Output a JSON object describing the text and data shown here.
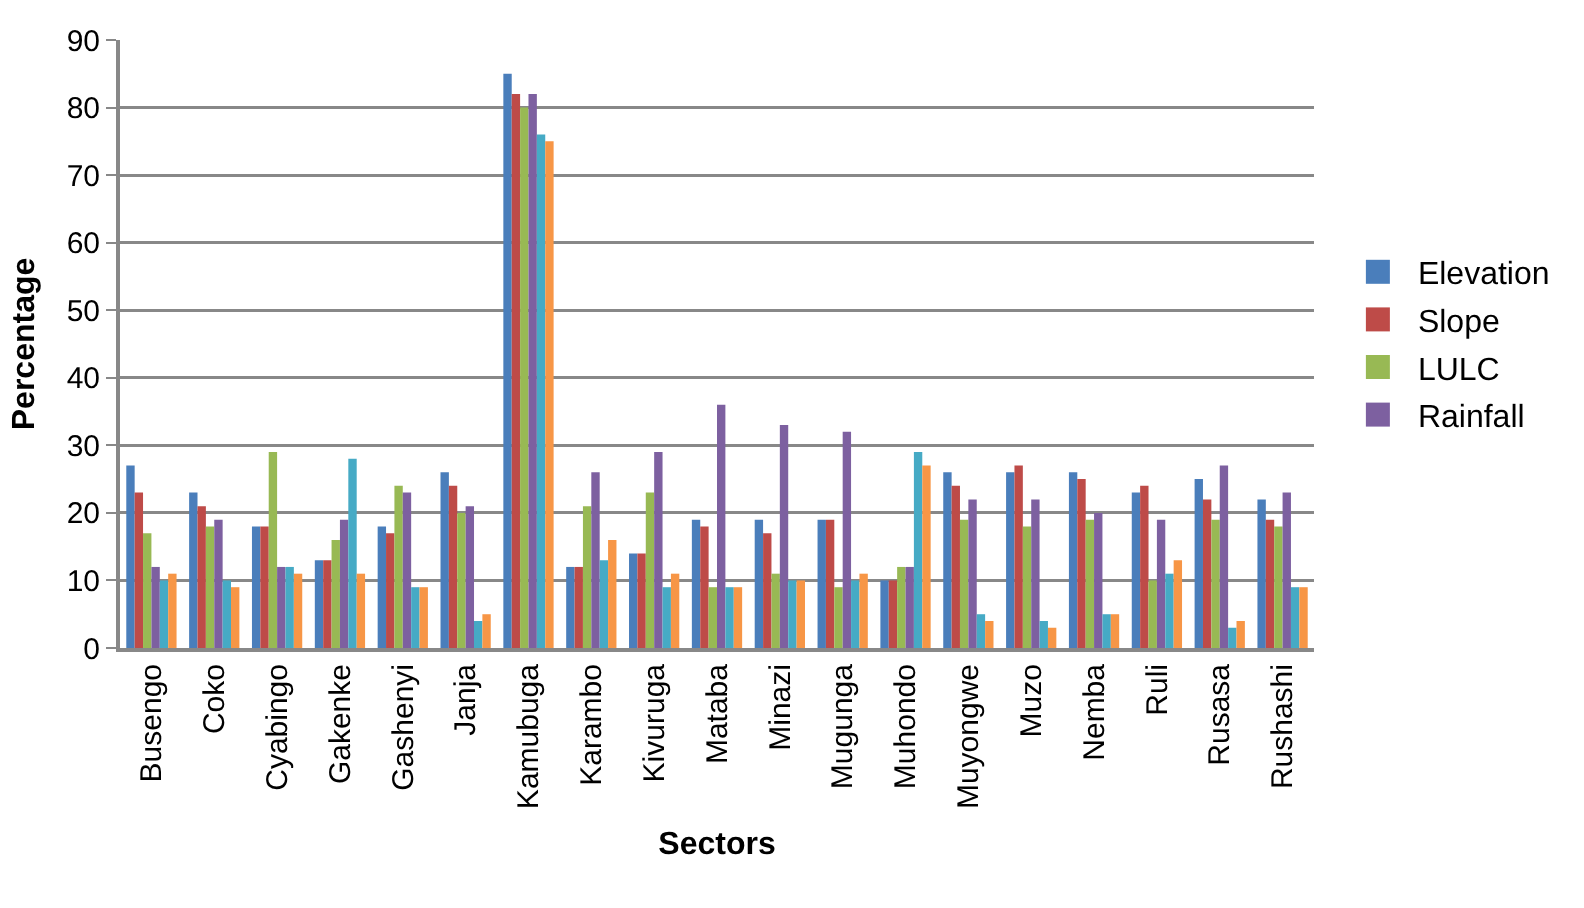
{
  "chart_data": {
    "type": "bar",
    "xlabel": "Sectors",
    "ylabel": "Percentage",
    "categories": [
      "Busengo",
      "Coko",
      "Cyabingo",
      "Gakenke",
      "Gashenyi",
      "Janja",
      "Kamubuga",
      "Karambo",
      "Kivuruga",
      "Mataba",
      "Minazi",
      "Mugunga",
      "Muhondo",
      "Muyongwe",
      "Muzo",
      "Nemba",
      "Ruli",
      "Rusasa",
      "Rushashi"
    ],
    "series": [
      {
        "name": "Elevation",
        "color": "#4a7ebb",
        "values": [
          27,
          23,
          18,
          13,
          18,
          26,
          85,
          12,
          14,
          19,
          19,
          19,
          10,
          26,
          26,
          26,
          23,
          25,
          22
        ]
      },
      {
        "name": "Slope",
        "color": "#be4b48",
        "values": [
          23,
          21,
          18,
          13,
          17,
          24,
          82,
          12,
          14,
          18,
          17,
          19,
          10,
          24,
          27,
          25,
          24,
          22,
          19
        ]
      },
      {
        "name": "LULC",
        "color": "#98b954",
        "values": [
          17,
          18,
          29,
          16,
          24,
          20,
          80,
          21,
          23,
          9,
          11,
          9,
          12,
          19,
          18,
          19,
          10,
          19,
          18
        ]
      },
      {
        "name": "Rainfall",
        "color": "#7d60a0",
        "values": [
          12,
          19,
          12,
          19,
          23,
          21,
          82,
          26,
          29,
          36,
          33,
          32,
          12,
          22,
          22,
          20,
          19,
          27,
          23
        ]
      },
      {
        "color": "#46aac5",
        "values": [
          10,
          10,
          12,
          28,
          9,
          4,
          76,
          13,
          9,
          9,
          10,
          10,
          29,
          5,
          4,
          5,
          11,
          3,
          9
        ]
      },
      {
        "color": "#f79646",
        "values": [
          11,
          9,
          11,
          11,
          9,
          5,
          75,
          16,
          11,
          9,
          10,
          11,
          27,
          4,
          3,
          5,
          13,
          4,
          9
        ]
      }
    ],
    "ylim": [
      0,
      90
    ],
    "yticks": [
      0,
      10,
      20,
      30,
      40,
      50,
      60,
      70,
      80,
      90
    ],
    "grid": "y",
    "legend": "right"
  }
}
